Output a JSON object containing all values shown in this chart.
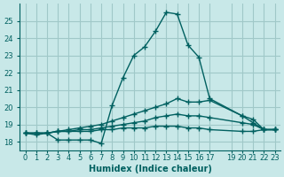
{
  "background_color": "#c8e8e8",
  "grid_color": "#a0c8c8",
  "line_color": "#006060",
  "xlabel": "Humidex (Indice chaleur)",
  "ylim": [
    17.5,
    26.0
  ],
  "xlim": [
    -0.5,
    23.5
  ],
  "yticks": [
    18,
    19,
    20,
    21,
    22,
    23,
    24,
    25
  ],
  "xtick_positions": [
    0,
    1,
    2,
    3,
    4,
    5,
    6,
    7,
    8,
    9,
    10,
    11,
    12,
    13,
    14,
    15,
    16,
    17,
    19,
    20,
    21,
    22,
    23
  ],
  "xtick_labels": [
    "0",
    "1",
    "2",
    "3",
    "4",
    "5",
    "6",
    "7",
    "8",
    "9",
    "10",
    "11",
    "12",
    "13",
    "14",
    "15",
    "16",
    "17",
    "19",
    "20",
    "21",
    "22",
    "23"
  ],
  "series": [
    [
      18.5,
      18.4,
      18.5,
      18.1,
      18.1,
      18.1,
      18.1,
      17.9,
      20.1,
      21.7,
      23.0,
      23.5,
      24.4,
      25.5,
      25.4,
      23.6,
      22.9,
      20.5,
      19.5,
      19.1,
      18.7,
      18.7
    ],
    [
      18.5,
      18.5,
      18.5,
      18.6,
      18.7,
      18.8,
      18.9,
      19.0,
      19.2,
      19.4,
      19.6,
      19.8,
      20.0,
      20.2,
      20.5,
      20.3,
      20.3,
      20.4,
      19.5,
      19.3,
      18.7,
      18.7
    ],
    [
      18.5,
      18.5,
      18.5,
      18.6,
      18.6,
      18.7,
      18.7,
      18.8,
      18.9,
      19.0,
      19.1,
      19.2,
      19.4,
      19.5,
      19.6,
      19.5,
      19.5,
      19.4,
      19.1,
      19.0,
      18.7,
      18.7
    ],
    [
      18.5,
      18.5,
      18.5,
      18.6,
      18.6,
      18.6,
      18.6,
      18.7,
      18.7,
      18.8,
      18.8,
      18.8,
      18.9,
      18.9,
      18.9,
      18.8,
      18.8,
      18.7,
      18.6,
      18.6,
      18.7,
      18.7
    ]
  ],
  "x_indices": [
    0,
    1,
    2,
    3,
    4,
    5,
    6,
    7,
    8,
    9,
    10,
    11,
    12,
    13,
    14,
    15,
    16,
    17,
    20,
    21,
    22,
    23
  ]
}
